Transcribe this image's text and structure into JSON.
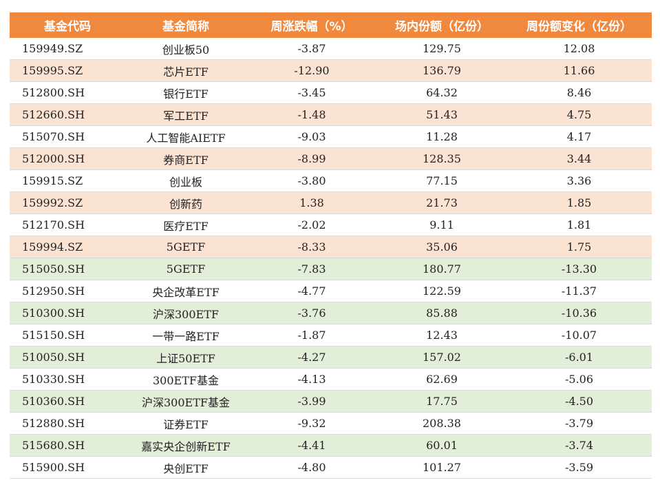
{
  "headers": [
    "基金代码",
    "基金简称",
    "周涨跌幅（%）",
    "场内份额（亿份）",
    "周份额变化（亿份）"
  ],
  "rows": [
    [
      "159949.SZ",
      "创业板50",
      "-3.87",
      "129.75",
      "12.08"
    ],
    [
      "159995.SZ",
      "芯片ETF",
      "-12.90",
      "136.79",
      "11.66"
    ],
    [
      "512800.SH",
      "银行ETF",
      "-3.45",
      "64.32",
      "8.46"
    ],
    [
      "512660.SH",
      "军工ETF",
      "-1.48",
      "51.43",
      "4.75"
    ],
    [
      "515070.SH",
      "人工智能AIETF",
      "-9.03",
      "11.28",
      "4.17"
    ],
    [
      "512000.SH",
      "券商ETF",
      "-8.99",
      "128.35",
      "3.44"
    ],
    [
      "159915.SZ",
      "创业板",
      "-3.80",
      "77.15",
      "3.36"
    ],
    [
      "159992.SZ",
      "创新药",
      "1.38",
      "21.73",
      "1.85"
    ],
    [
      "512170.SH",
      "医疗ETF",
      "-2.02",
      "9.11",
      "1.81"
    ],
    [
      "159994.SZ",
      "5GETF",
      "-8.33",
      "35.06",
      "1.75"
    ],
    [
      "515050.SH",
      "5GETF",
      "-7.83",
      "180.77",
      "-13.30"
    ],
    [
      "512950.SH",
      "央企改革ETF",
      "-4.77",
      "122.59",
      "-11.37"
    ],
    [
      "510300.SH",
      "沪深300ETF",
      "-3.76",
      "85.88",
      "-10.36"
    ],
    [
      "515150.SH",
      "一带一路ETF",
      "-1.87",
      "12.43",
      "-10.07"
    ],
    [
      "510050.SH",
      "上证50ETF",
      "-4.27",
      "157.02",
      "-6.01"
    ],
    [
      "510330.SH",
      "300ETF基金",
      "-4.13",
      "62.69",
      "-5.06"
    ],
    [
      "510360.SH",
      "沪深300ETF基金",
      "-3.99",
      "17.75",
      "-4.50"
    ],
    [
      "512880.SH",
      "证券ETF",
      "-9.32",
      "208.38",
      "-3.79"
    ],
    [
      "515680.SH",
      "嘉实央企创新ETF",
      "-4.41",
      "60.01",
      "-3.74"
    ],
    [
      "515900.SH",
      "央创ETF",
      "-4.80",
      "101.27",
      "-3.59"
    ]
  ]
}
